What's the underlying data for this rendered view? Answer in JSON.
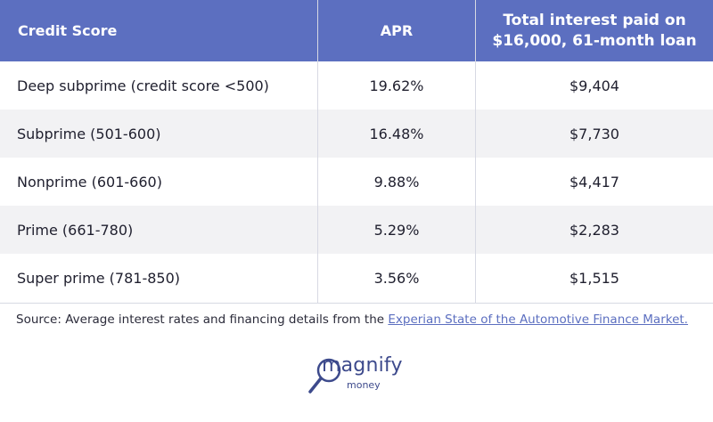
{
  "table": {
    "headers": {
      "credit_score": "Credit Score",
      "apr": "APR",
      "total_interest_line1": "Total interest paid on",
      "total_interest_line2": "$16,000, 61-month loan"
    },
    "rows": [
      {
        "credit_score": "Deep subprime (credit score <500)",
        "apr": "19.62%",
        "total_interest": "$9,404"
      },
      {
        "credit_score": "Subprime (501-600)",
        "apr": "16.48%",
        "total_interest": "$7,730"
      },
      {
        "credit_score": "Nonprime (601-660)",
        "apr": "9.88%",
        "total_interest": "$4,417"
      },
      {
        "credit_score": "Prime (661-780)",
        "apr": "5.29%",
        "total_interest": "$2,283"
      },
      {
        "credit_score": "Super prime (781-850)",
        "apr": "3.56%",
        "total_interest": "$1,515"
      }
    ]
  },
  "source": {
    "prefix": "Source: Average interest rates and financing details from the ",
    "link_text": "Experian State of the Automotive Finance Market."
  },
  "logo": {
    "word": "magnify",
    "sub": "money",
    "icon": "magnifying-glass-icon"
  },
  "colors": {
    "header_bg": "#5c6fc0",
    "alt_row_bg": "#f2f2f4",
    "link": "#5c6fc0",
    "brand": "#3d4a8c"
  }
}
